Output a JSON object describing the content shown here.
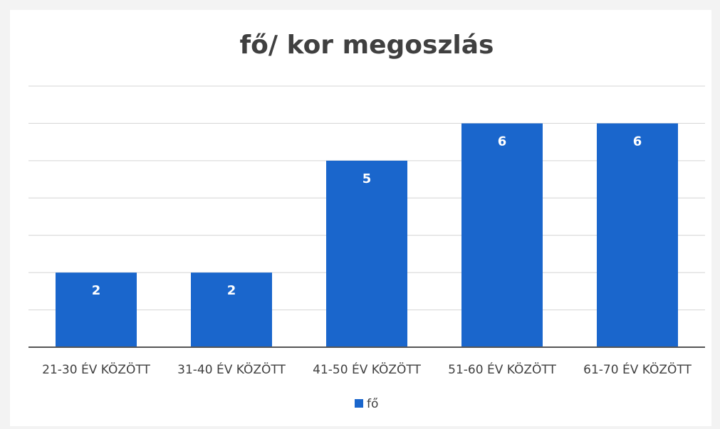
{
  "chart_data": {
    "type": "bar",
    "title": "fő/ kor megoszlás",
    "categories": [
      "21-30 ÉV KÖZÖTT",
      "31-40 ÉV KÖZÖTT",
      "41-50 ÉV KÖZÖTT",
      "51-60 ÉV KÖZÖTT",
      "61-70 ÉV KÖZÖTT"
    ],
    "series": [
      {
        "name": "fő",
        "color": "#1a66cc",
        "values": [
          2,
          2,
          5,
          6,
          6
        ]
      }
    ],
    "ylim": [
      0,
      7
    ],
    "yticks": [
      0,
      1,
      2,
      3,
      4,
      5,
      6,
      7
    ],
    "grid": true,
    "legend": "bottom"
  }
}
